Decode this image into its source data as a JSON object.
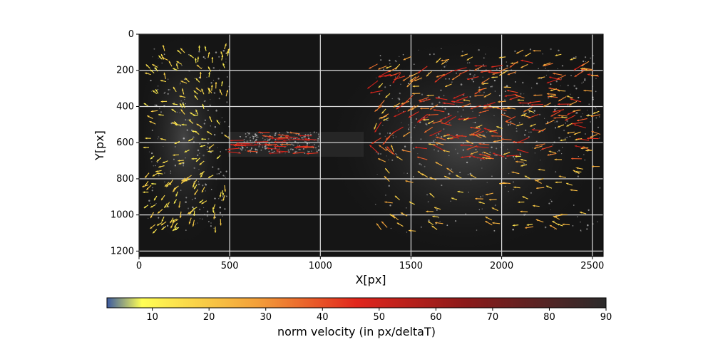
{
  "chart_data": {
    "type": "quiver",
    "xlabel": "X[px]",
    "ylabel": "Y[px]",
    "xlim": [
      0,
      2560
    ],
    "ylim": [
      1230,
      0
    ],
    "y_inverted": true,
    "xticks": [
      0,
      500,
      1000,
      1500,
      2000,
      2500
    ],
    "yticks": [
      0,
      200,
      400,
      600,
      800,
      1000,
      1200
    ],
    "grid": true,
    "grid_color": "#dddddd",
    "background": "grayscale particle image",
    "colormap": [
      "#3b5aa0",
      "#ffff55",
      "#f3a03a",
      "#e1261c",
      "#8b1a1a",
      "#2b2b2b"
    ],
    "colorbar": {
      "label": "norm velocity (in px/deltaT)",
      "range": [
        2,
        90
      ],
      "ticks": [
        10,
        20,
        30,
        40,
        50,
        60,
        70,
        80,
        90
      ],
      "orientation": "horizontal"
    },
    "vector_fields": [
      {
        "region": "left cluster",
        "x_range": [
          50,
          500
        ],
        "y_range": [
          80,
          1100
        ],
        "velocity": 15
      },
      {
        "region": "channel jet",
        "x_range": [
          550,
          1000
        ],
        "y_range": [
          540,
          660
        ],
        "velocity": 48
      },
      {
        "region": "right cluster core",
        "x_range": [
          1300,
          2550
        ],
        "y_range": [
          150,
          700
        ],
        "velocity": 40
      },
      {
        "region": "right cluster outer",
        "x_range": [
          1300,
          2550
        ],
        "y_range": [
          80,
          1100
        ],
        "velocity": 22
      }
    ]
  }
}
